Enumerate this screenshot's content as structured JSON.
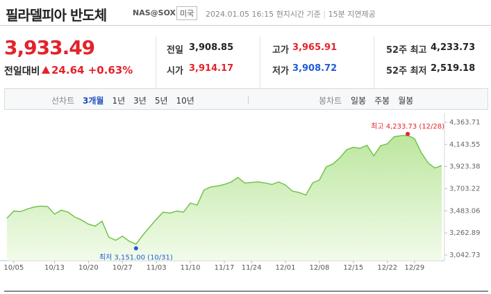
{
  "header": {
    "title": "필라델피아 반도체",
    "code": "NAS@SOX",
    "market": "미국",
    "time": "2024.01.05 16:15",
    "time_note": "현지시간 기준",
    "delay": "15분 지연제공"
  },
  "quote": {
    "price": "3,933.49",
    "change_label": "전일대비",
    "change": "24.64",
    "change_pct": "+0.63%"
  },
  "stats": [
    {
      "label": "전일",
      "value": "3,908.85",
      "color": "#222222"
    },
    {
      "label": "시가",
      "value": "3,914.17",
      "color": "#e4222b"
    },
    {
      "label": "고가",
      "value": "3,965.91",
      "color": "#e4222b"
    },
    {
      "label": "저가",
      "value": "3,908.72",
      "color": "#1f5cd6"
    },
    {
      "label": "52주 최고",
      "value": "4,233.73",
      "color": "#222222"
    },
    {
      "label": "52주 최저",
      "value": "2,519.18",
      "color": "#222222"
    }
  ],
  "tabs": {
    "line_label": "선차트",
    "line_options": [
      "3개월",
      "1년",
      "3년",
      "5년",
      "10년"
    ],
    "line_selected": 0,
    "candle_label": "봉차트",
    "candle_options": [
      "일봉",
      "주봉",
      "월봉"
    ]
  },
  "chart_data": {
    "type": "area",
    "categories": [
      null,
      "10/05",
      null,
      null,
      null,
      null,
      null,
      "10/13",
      null,
      null,
      null,
      null,
      "10/20",
      null,
      null,
      null,
      null,
      "10/27",
      null,
      null,
      null,
      null,
      "11/03",
      null,
      null,
      null,
      null,
      "11/10",
      null,
      null,
      null,
      null,
      "11/17",
      null,
      null,
      null,
      "11/24",
      null,
      null,
      null,
      null,
      "12/01",
      null,
      null,
      null,
      null,
      "12/08",
      null,
      null,
      null,
      null,
      "12/15",
      null,
      null,
      null,
      null,
      "12/22",
      null,
      null,
      null,
      "12/29",
      null,
      null,
      null,
      null
    ],
    "values": [
      3409,
      3480,
      3475,
      3500,
      3520,
      3530,
      3525,
      3450,
      3490,
      3470,
      3420,
      3390,
      3350,
      3330,
      3380,
      3220,
      3190,
      3230,
      3180,
      3151,
      3240,
      3320,
      3400,
      3470,
      3460,
      3480,
      3470,
      3560,
      3540,
      3690,
      3720,
      3730,
      3745,
      3770,
      3815,
      3760,
      3765,
      3770,
      3760,
      3745,
      3770,
      3740,
      3680,
      3665,
      3640,
      3760,
      3790,
      3920,
      3950,
      4010,
      4090,
      4115,
      4105,
      4135,
      4030,
      4130,
      4150,
      4220,
      4230,
      4233.73,
      4200,
      4060,
      3960,
      3908.85,
      3933.49
    ],
    "color": "#72c34a",
    "ylim": [
      2987,
      4405
    ],
    "yticks": [
      {
        "value": 3042.73,
        "label": "3,042.73"
      },
      {
        "value": 3262.89,
        "label": "3,262.89"
      },
      {
        "value": 3483.06,
        "label": "3,483.06"
      },
      {
        "value": 3703.22,
        "label": "3,703.22"
      },
      {
        "value": 3923.38,
        "label": "3,923.38"
      },
      {
        "value": 4143.55,
        "label": "4,143.55"
      },
      {
        "value": 4363.71,
        "label": "4,363.71"
      }
    ],
    "annotations": [
      {
        "text": "최고 4,233.73 (12/28)",
        "value": 4233.73,
        "color": "#e4222b"
      },
      {
        "text": "최저 3,151.00 (10/31)",
        "value": 3151,
        "color": "#1f5cd6"
      }
    ]
  }
}
